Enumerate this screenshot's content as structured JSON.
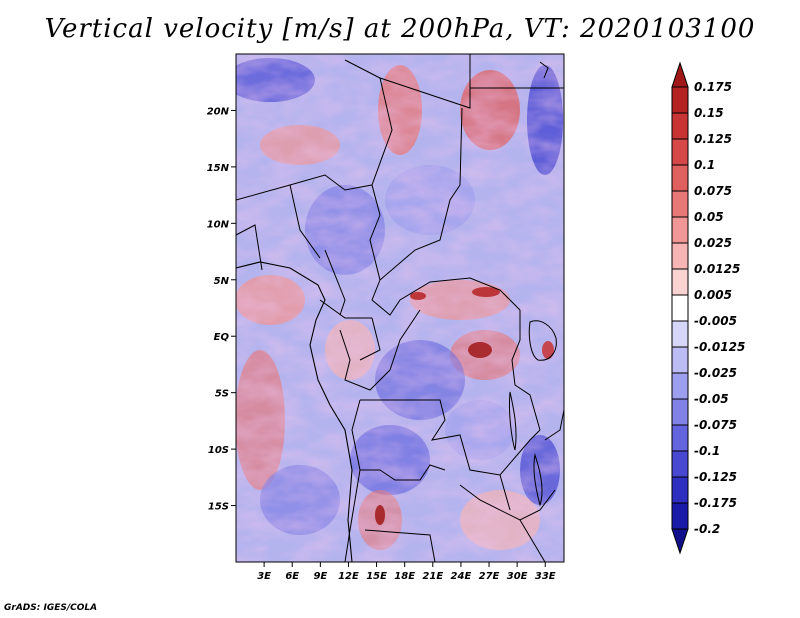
{
  "title": "Vertical velocity [m/s] at 200hPa, VT: 2020103100",
  "credit": "GrADS: IGES/COLA",
  "chart_data": {
    "type": "heatmap",
    "title": "Vertical velocity [m/s] at 200hPa, VT: 2020103100",
    "variable": "Vertical velocity",
    "units": "m/s",
    "level": "200hPa",
    "valid_time": "2020103100",
    "lon_range": [
      0,
      35
    ],
    "lat_range": [
      -20,
      25
    ],
    "x_tick_labels": [
      "3E",
      "6E",
      "9E",
      "12E",
      "15E",
      "18E",
      "21E",
      "24E",
      "27E",
      "30E",
      "33E"
    ],
    "x_tick_values": [
      3,
      6,
      9,
      12,
      15,
      18,
      21,
      24,
      27,
      30,
      33
    ],
    "y_tick_labels": [
      "20N",
      "15N",
      "10N",
      "5N",
      "EQ",
      "5S",
      "10S",
      "15S"
    ],
    "y_tick_values": [
      20,
      15,
      10,
      5,
      0,
      -5,
      -10,
      -15
    ],
    "colorbar": {
      "orientation": "vertical",
      "placement": "right",
      "labels": [
        "0.175",
        "0.15",
        "0.125",
        "0.1",
        "0.075",
        "0.05",
        "0.025",
        "0.0125",
        "0.005",
        "-0.005",
        "-0.0125",
        "-0.025",
        "-0.05",
        "-0.075",
        "-0.1",
        "-0.125",
        "-0.175",
        "-0.2"
      ],
      "colors": [
        "#a01818",
        "#b52222",
        "#c83333",
        "#d64848",
        "#e06060",
        "#e87878",
        "#f09696",
        "#f6b4b4",
        "#fad2d2",
        "#ffffff",
        "#d6d6f8",
        "#bcbcf4",
        "#9e9eee",
        "#8282e6",
        "#6464de",
        "#4848d2",
        "#2e2ec0",
        "#1a1aa8",
        "#10108c"
      ]
    }
  }
}
